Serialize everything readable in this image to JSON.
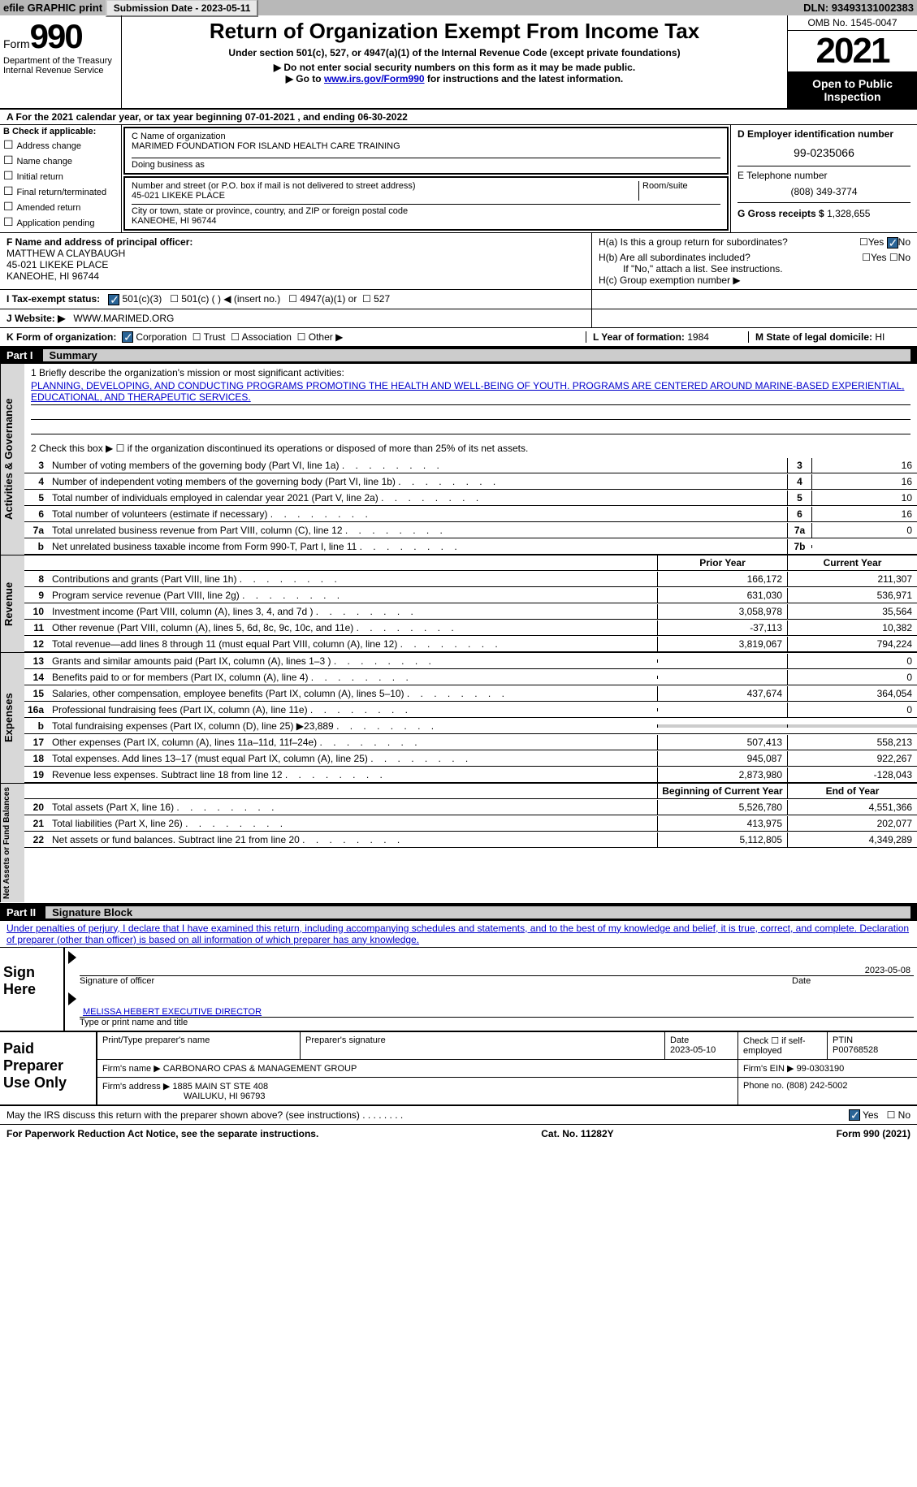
{
  "topbar": {
    "efile": "efile GRAPHIC print",
    "submission_label": "Submission Date - 2023-05-11",
    "dln": "DLN: 93493131002383"
  },
  "header": {
    "form_word": "Form",
    "form_num": "990",
    "title": "Return of Organization Exempt From Income Tax",
    "sub": "Under section 501(c), 527, or 4947(a)(1) of the Internal Revenue Code (except private foundations)",
    "instr1": "Do not enter social security numbers on this form as it may be made public.",
    "instr2_pre": "Go to ",
    "instr2_link": "www.irs.gov/Form990",
    "instr2_post": " for instructions and the latest information.",
    "omb": "OMB No. 1545-0047",
    "year": "2021",
    "inspection": "Open to Public Inspection",
    "dept": "Department of the Treasury",
    "irs": "Internal Revenue Service"
  },
  "lineA": {
    "text_pre": "A For the 2021 calendar year, or tax year beginning ",
    "begin": "07-01-2021",
    "mid": ", and ending ",
    "end": "06-30-2022"
  },
  "colB": {
    "label": "B Check if applicable:",
    "items": [
      "Address change",
      "Name change",
      "Initial return",
      "Final return/terminated",
      "Amended return",
      "Application pending"
    ]
  },
  "colC": {
    "name_label": "C Name of organization",
    "org_name": "MARIMED FOUNDATION FOR ISLAND HEALTH CARE TRAINING",
    "dba_label": "Doing business as",
    "addr_label": "Number and street (or P.O. box if mail is not delivered to street address)",
    "room_label": "Room/suite",
    "street": "45-021 LIKEKE PLACE",
    "city_label": "City or town, state or province, country, and ZIP or foreign postal code",
    "city": "KANEOHE, HI  96744"
  },
  "colD": {
    "label": "D Employer identification number",
    "ein": "99-0235066",
    "e_label": "E Telephone number",
    "phone": "(808) 349-3774",
    "g_label": "G Gross receipts $ ",
    "g_val": "1,328,655"
  },
  "sectionF": {
    "label": "F Name and address of principal officer:",
    "name": "MATTHEW A CLAYBAUGH",
    "addr1": "45-021 LIKEKE PLACE",
    "addr2": "KANEOHE, HI  96744"
  },
  "sectionH": {
    "ha": "H(a)  Is this a group return for subordinates?",
    "hb": "H(b)  Are all subordinates included?",
    "hb_note": "If \"No,\" attach a list. See instructions.",
    "hc": "H(c)  Group exemption number ▶",
    "yes": "Yes",
    "no": "No"
  },
  "taxExempt": {
    "label": "I     Tax-exempt status:",
    "opt1": "501(c)(3)",
    "opt2": "501(c) (  ) ◀ (insert no.)",
    "opt3": "4947(a)(1) or",
    "opt4": "527"
  },
  "website": {
    "label": "J    Website: ▶",
    "url": "WWW.MARIMED.ORG"
  },
  "lineK": {
    "label": "K Form of organization:",
    "corp": "Corporation",
    "trust": "Trust",
    "assoc": "Association",
    "other": "Other ▶"
  },
  "lineL": {
    "label": "L Year of formation: ",
    "val": "1984"
  },
  "lineM": {
    "label": "M State of legal domicile: ",
    "val": "HI"
  },
  "part1": {
    "num": "Part I",
    "title": "Summary"
  },
  "summary": {
    "q1": "1   Briefly describe the organization's mission or most significant activities:",
    "mission": "PLANNING, DEVELOPING, AND CONDUCTING PROGRAMS PROMOTING THE HEALTH AND WELL-BEING OF YOUTH. PROGRAMS ARE CENTERED AROUND MARINE-BASED EXPERIENTIAL, EDUCATIONAL, AND THERAPEUTIC SERVICES.",
    "q2": "2   Check this box ▶ ☐  if the organization discontinued its operations or disposed of more than 25% of its net assets.",
    "vert_gov": "Activities & Governance",
    "vert_rev": "Revenue",
    "vert_exp": "Expenses",
    "vert_net": "Net Assets or Fund Balances"
  },
  "lines_gov": [
    {
      "n": "3",
      "d": "Number of voting members of the governing body (Part VI, line 1a)",
      "box": "3",
      "v": "16"
    },
    {
      "n": "4",
      "d": "Number of independent voting members of the governing body (Part VI, line 1b)",
      "box": "4",
      "v": "16"
    },
    {
      "n": "5",
      "d": "Total number of individuals employed in calendar year 2021 (Part V, line 2a)",
      "box": "5",
      "v": "10"
    },
    {
      "n": "6",
      "d": "Total number of volunteers (estimate if necessary)",
      "box": "6",
      "v": "16"
    },
    {
      "n": "7a",
      "d": "Total unrelated business revenue from Part VIII, column (C), line 12",
      "box": "7a",
      "v": "0"
    },
    {
      "n": "b",
      "d": "Net unrelated business taxable income from Form 990-T, Part I, line 11",
      "box": "7b",
      "v": ""
    }
  ],
  "prior_label": "Prior Year",
  "current_label": "Current Year",
  "lines_rev": [
    {
      "n": "8",
      "d": "Contributions and grants (Part VIII, line 1h)",
      "p": "166,172",
      "c": "211,307"
    },
    {
      "n": "9",
      "d": "Program service revenue (Part VIII, line 2g)",
      "p": "631,030",
      "c": "536,971"
    },
    {
      "n": "10",
      "d": "Investment income (Part VIII, column (A), lines 3, 4, and 7d )",
      "p": "3,058,978",
      "c": "35,564"
    },
    {
      "n": "11",
      "d": "Other revenue (Part VIII, column (A), lines 5, 6d, 8c, 9c, 10c, and 11e)",
      "p": "-37,113",
      "c": "10,382"
    },
    {
      "n": "12",
      "d": "Total revenue—add lines 8 through 11 (must equal Part VIII, column (A), line 12)",
      "p": "3,819,067",
      "c": "794,224"
    }
  ],
  "lines_exp": [
    {
      "n": "13",
      "d": "Grants and similar amounts paid (Part IX, column (A), lines 1–3 )",
      "p": "",
      "c": "0"
    },
    {
      "n": "14",
      "d": "Benefits paid to or for members (Part IX, column (A), line 4)",
      "p": "",
      "c": "0"
    },
    {
      "n": "15",
      "d": "Salaries, other compensation, employee benefits (Part IX, column (A), lines 5–10)",
      "p": "437,674",
      "c": "364,054"
    },
    {
      "n": "16a",
      "d": "Professional fundraising fees (Part IX, column (A), line 11e)",
      "p": "",
      "c": "0"
    },
    {
      "n": "b",
      "d": "Total fundraising expenses (Part IX, column (D), line 25) ▶23,889",
      "p": "shaded",
      "c": "shaded"
    },
    {
      "n": "17",
      "d": "Other expenses (Part IX, column (A), lines 11a–11d, 11f–24e)",
      "p": "507,413",
      "c": "558,213"
    },
    {
      "n": "18",
      "d": "Total expenses. Add lines 13–17 (must equal Part IX, column (A), line 25)",
      "p": "945,087",
      "c": "922,267"
    },
    {
      "n": "19",
      "d": "Revenue less expenses. Subtract line 18 from line 12",
      "p": "2,873,980",
      "c": "-128,043"
    }
  ],
  "begin_label": "Beginning of Current Year",
  "end_label": "End of Year",
  "lines_net": [
    {
      "n": "20",
      "d": "Total assets (Part X, line 16)",
      "p": "5,526,780",
      "c": "4,551,366"
    },
    {
      "n": "21",
      "d": "Total liabilities (Part X, line 26)",
      "p": "413,975",
      "c": "202,077"
    },
    {
      "n": "22",
      "d": "Net assets or fund balances. Subtract line 21 from line 20",
      "p": "5,112,805",
      "c": "4,349,289"
    }
  ],
  "part2": {
    "num": "Part II",
    "title": "Signature Block"
  },
  "perjury": "Under penalties of perjury, I declare that I have examined this return, including accompanying schedules and statements, and to the best of my knowledge and belief, it is true, correct, and complete. Declaration of preparer (other than officer) is based on all information of which preparer has any knowledge.",
  "sign": {
    "label": "Sign Here",
    "sig_officer": "Signature of officer",
    "date_label": "Date",
    "date": "2023-05-08",
    "name": "MELISSA HEBERT  EXECUTIVE DIRECTOR",
    "name_label": "Type or print name and title"
  },
  "preparer": {
    "label": "Paid Preparer Use Only",
    "h1": "Print/Type preparer's name",
    "h2": "Preparer's signature",
    "h3": "Date",
    "date": "2023-05-10",
    "h4": "Check ☐ if self-employed",
    "h5": "PTIN",
    "ptin": "P00768528",
    "firm_label": "Firm's name    ▶",
    "firm": "CARBONARO CPAS & MANAGEMENT GROUP",
    "ein_label": "Firm's EIN ▶",
    "ein": "99-0303190",
    "addr_label": "Firm's address ▶",
    "addr1": "1885 MAIN ST STE 408",
    "addr2": "WAILUKU, HI  96793",
    "phone_label": "Phone no. ",
    "phone": "(808) 242-5002"
  },
  "discuss": {
    "q": "May the IRS discuss this return with the preparer shown above? (see instructions)",
    "yes": "Yes",
    "no": "No"
  },
  "footer": {
    "left": "For Paperwork Reduction Act Notice, see the separate instructions.",
    "mid": "Cat. No. 11282Y",
    "right": "Form 990 (2021)"
  }
}
